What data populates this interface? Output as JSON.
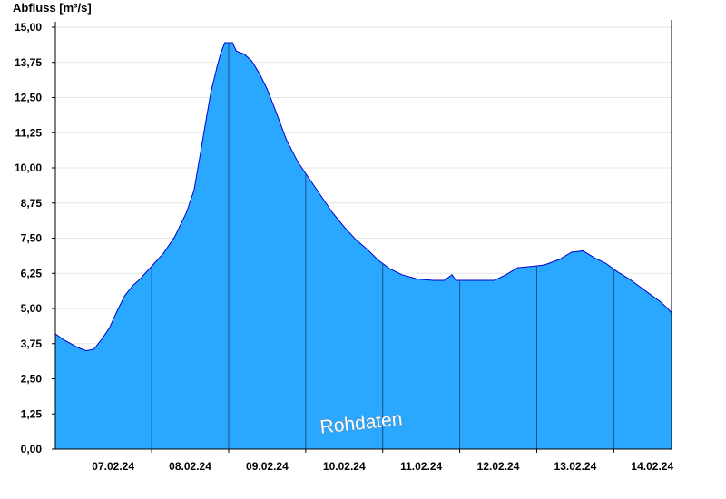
{
  "chart_data": {
    "type": "area",
    "title": "",
    "ylabel": "Abfluss [m³/s]",
    "xlabel": "",
    "ylim": [
      0,
      15
    ],
    "yticks": [
      "0,00",
      "1,25",
      "2,50",
      "3,75",
      "5,00",
      "6,25",
      "7,50",
      "8,75",
      "10,00",
      "11,25",
      "12,50",
      "13,75",
      "15,00"
    ],
    "xticks": [
      "07.02.24",
      "08.02.24",
      "09.02.24",
      "10.02.24",
      "11.02.24",
      "12.02.24",
      "13.02.24",
      "14.02.24"
    ],
    "x_unit": "days since 06.02.24 00:00",
    "xlim": [
      0.75,
      8.75
    ],
    "grid": true,
    "fill_color": "#2aa8ff",
    "line_color": "#0000cc",
    "watermark": "Rohdaten",
    "series": [
      {
        "values": [
          [
            0.75,
            4.1
          ],
          [
            0.85,
            3.9
          ],
          [
            0.95,
            3.75
          ],
          [
            1.05,
            3.6
          ],
          [
            1.15,
            3.5
          ],
          [
            1.25,
            3.55
          ],
          [
            1.35,
            3.9
          ],
          [
            1.45,
            4.3
          ],
          [
            1.55,
            4.9
          ],
          [
            1.65,
            5.45
          ],
          [
            1.75,
            5.8
          ],
          [
            1.85,
            6.05
          ],
          [
            2.0,
            6.5
          ],
          [
            2.15,
            6.95
          ],
          [
            2.3,
            7.55
          ],
          [
            2.45,
            8.4
          ],
          [
            2.55,
            9.2
          ],
          [
            2.62,
            10.3
          ],
          [
            2.7,
            11.6
          ],
          [
            2.77,
            12.7
          ],
          [
            2.85,
            13.6
          ],
          [
            2.9,
            14.1
          ],
          [
            2.95,
            14.45
          ],
          [
            3.05,
            14.45
          ],
          [
            3.1,
            14.15
          ],
          [
            3.2,
            14.05
          ],
          [
            3.3,
            13.8
          ],
          [
            3.4,
            13.35
          ],
          [
            3.5,
            12.8
          ],
          [
            3.6,
            12.1
          ],
          [
            3.75,
            11.0
          ],
          [
            3.9,
            10.2
          ],
          [
            4.05,
            9.6
          ],
          [
            4.2,
            9.0
          ],
          [
            4.35,
            8.4
          ],
          [
            4.5,
            7.9
          ],
          [
            4.65,
            7.45
          ],
          [
            4.8,
            7.1
          ],
          [
            4.95,
            6.7
          ],
          [
            5.1,
            6.4
          ],
          [
            5.25,
            6.2
          ],
          [
            5.45,
            6.05
          ],
          [
            5.65,
            6.0
          ],
          [
            5.8,
            6.0
          ],
          [
            5.9,
            6.2
          ],
          [
            5.95,
            6.0
          ],
          [
            6.25,
            6.0
          ],
          [
            6.45,
            6.0
          ],
          [
            6.6,
            6.2
          ],
          [
            6.75,
            6.45
          ],
          [
            6.95,
            6.5
          ],
          [
            7.1,
            6.55
          ],
          [
            7.3,
            6.75
          ],
          [
            7.45,
            7.0
          ],
          [
            7.6,
            7.05
          ],
          [
            7.75,
            6.8
          ],
          [
            7.9,
            6.6
          ],
          [
            8.05,
            6.3
          ],
          [
            8.2,
            6.05
          ],
          [
            8.35,
            5.75
          ],
          [
            8.5,
            5.45
          ],
          [
            8.6,
            5.25
          ],
          [
            8.7,
            5.0
          ],
          [
            8.75,
            4.85
          ]
        ]
      }
    ]
  }
}
